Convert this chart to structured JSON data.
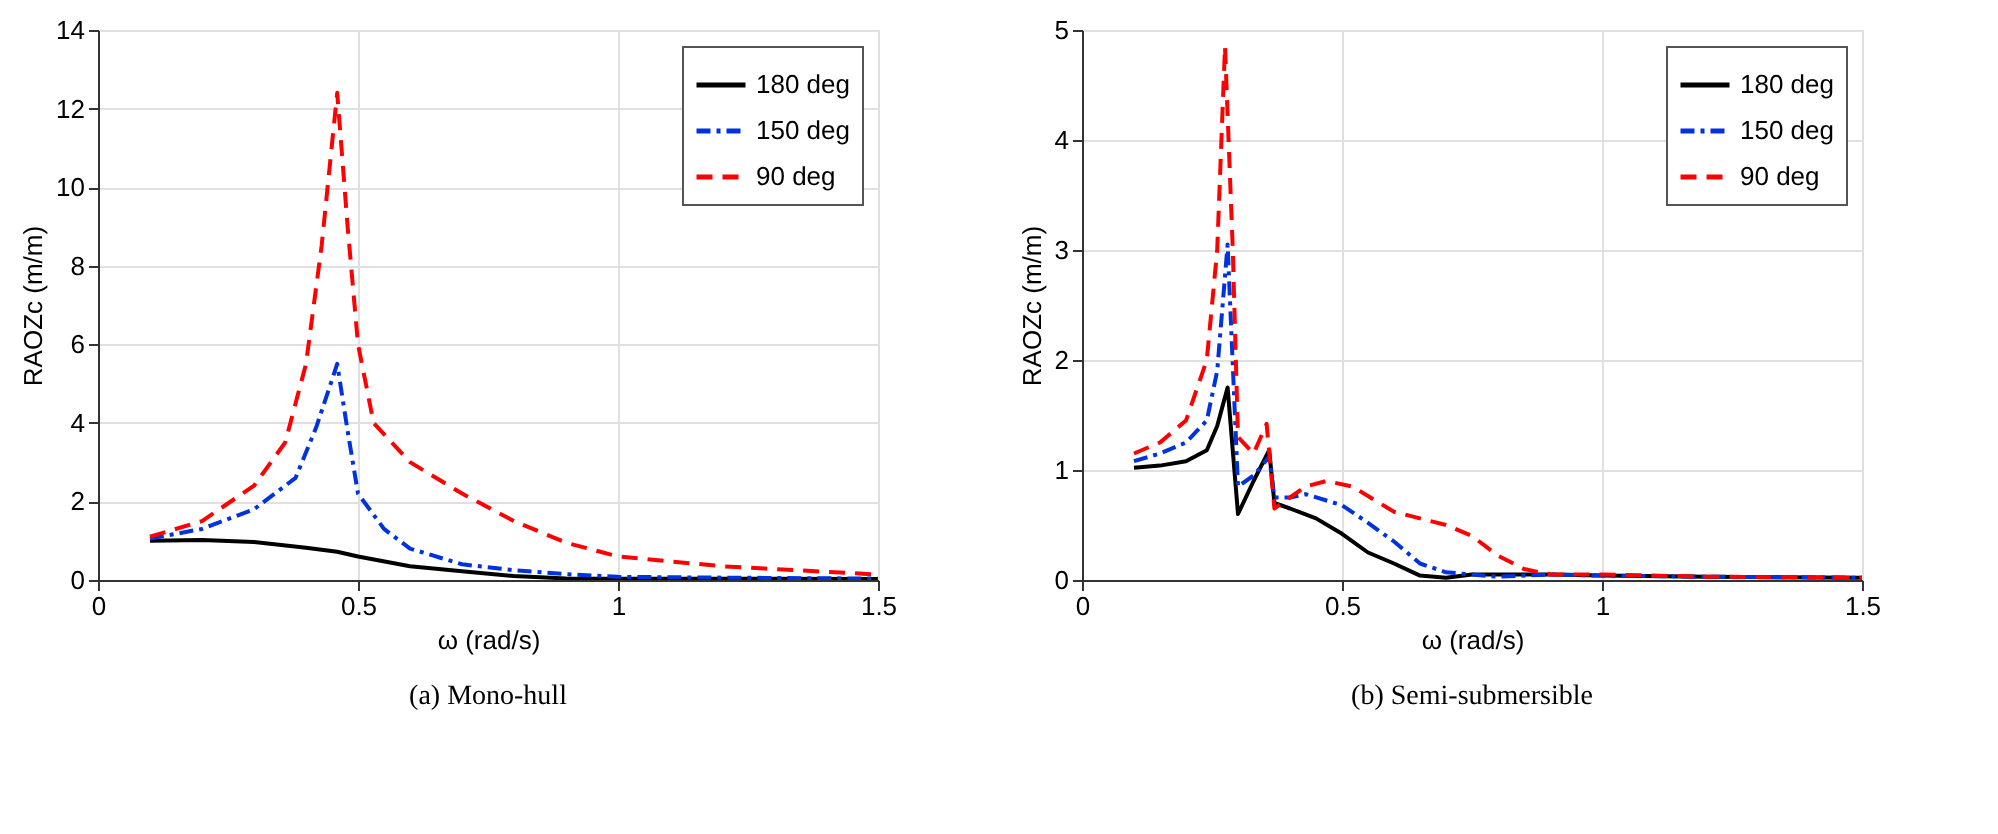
{
  "chart_data": [
    {
      "type": "line",
      "title": "(a) Mono-hull",
      "xlabel": "ω (rad/s)",
      "ylabel": "RAOZc (m/m)",
      "xlim": [
        0,
        1.5
      ],
      "xticks": [
        0,
        0.5,
        1,
        1.5
      ],
      "ylim": [
        0,
        14
      ],
      "yticks": [
        0,
        2,
        4,
        6,
        8,
        10,
        12,
        14
      ],
      "grid": true,
      "legend": "top right",
      "series": [
        {
          "name": "180 deg",
          "color": "#000000",
          "line_style": "solid",
          "x": [
            0.1,
            0.2,
            0.3,
            0.4,
            0.46,
            0.5,
            0.6,
            0.7,
            0.8,
            0.9,
            1.0,
            1.2,
            1.5
          ],
          "values": [
            1.0,
            1.02,
            0.97,
            0.82,
            0.72,
            0.6,
            0.35,
            0.22,
            0.1,
            0.04,
            0.035,
            0.035,
            0.025
          ]
        },
        {
          "name": "150 deg",
          "color": "#0033dd",
          "line_style": "dotted",
          "x": [
            0.1,
            0.2,
            0.3,
            0.38,
            0.42,
            0.46,
            0.48,
            0.5,
            0.55,
            0.6,
            0.7,
            0.8,
            0.9,
            1.0,
            1.2,
            1.5
          ],
          "values": [
            1.05,
            1.3,
            1.8,
            2.6,
            3.9,
            5.5,
            3.8,
            2.2,
            1.3,
            0.8,
            0.4,
            0.25,
            0.15,
            0.08,
            0.06,
            0.035
          ]
        },
        {
          "name": "90 deg",
          "color": "#ff0000",
          "line_style": "dashed",
          "x": [
            0.1,
            0.2,
            0.3,
            0.36,
            0.4,
            0.43,
            0.46,
            0.48,
            0.5,
            0.53,
            0.6,
            0.7,
            0.8,
            0.9,
            1.0,
            1.2,
            1.5
          ],
          "values": [
            1.1,
            1.5,
            2.4,
            3.5,
            5.5,
            8.5,
            12.4,
            9,
            6,
            4,
            3,
            2.2,
            1.5,
            0.95,
            0.6,
            0.35,
            0.14
          ]
        }
      ]
    },
    {
      "type": "line",
      "title": "(b) Semi-submersible",
      "xlabel": "ω (rad/s)",
      "ylabel": "RAOZc (m/m)",
      "xlim": [
        0,
        1.5
      ],
      "xticks": [
        0,
        0.5,
        1,
        1.5
      ],
      "ylim": [
        0,
        5
      ],
      "yticks": [
        0,
        1,
        2,
        3,
        4,
        5
      ],
      "grid": true,
      "legend": "top right",
      "series": [
        {
          "name": "180 deg",
          "color": "#000000",
          "line_style": "solid",
          "x": [
            0.1,
            0.15,
            0.2,
            0.24,
            0.26,
            0.28,
            0.3,
            0.33,
            0.36,
            0.37,
            0.4,
            0.45,
            0.5,
            0.55,
            0.6,
            0.65,
            0.7,
            0.75,
            0.9,
            1.0,
            1.2,
            1.5
          ],
          "values": [
            1.02,
            1.04,
            1.08,
            1.18,
            1.4,
            1.75,
            0.6,
            0.9,
            1.18,
            0.7,
            0.65,
            0.56,
            0.42,
            0.25,
            0.15,
            0.04,
            0.02,
            0.05,
            0.05,
            0.04,
            0.03,
            0.02
          ]
        },
        {
          "name": "150 deg",
          "color": "#0033dd",
          "line_style": "dotted",
          "x": [
            0.1,
            0.15,
            0.2,
            0.24,
            0.26,
            0.28,
            0.3,
            0.33,
            0.36,
            0.37,
            0.4,
            0.43,
            0.5,
            0.55,
            0.6,
            0.65,
            0.7,
            0.8,
            0.9,
            1.0,
            1.2,
            1.5
          ],
          "values": [
            1.08,
            1.15,
            1.25,
            1.45,
            1.9,
            3.05,
            0.85,
            0.95,
            1.12,
            0.75,
            0.75,
            0.78,
            0.68,
            0.52,
            0.35,
            0.15,
            0.07,
            0.03,
            0.05,
            0.04,
            0.03,
            0.02
          ]
        },
        {
          "name": "90 deg",
          "color": "#ff0000",
          "line_style": "dashed",
          "x": [
            0.1,
            0.15,
            0.2,
            0.24,
            0.26,
            0.275,
            0.29,
            0.3,
            0.33,
            0.355,
            0.37,
            0.4,
            0.43,
            0.47,
            0.52,
            0.6,
            0.7,
            0.75,
            0.8,
            0.85,
            0.9,
            1.0,
            1.2,
            1.5
          ],
          "values": [
            1.15,
            1.25,
            1.45,
            2.0,
            3.0,
            4.85,
            3.0,
            1.3,
            1.15,
            1.42,
            0.65,
            0.75,
            0.85,
            0.9,
            0.85,
            0.62,
            0.5,
            0.4,
            0.22,
            0.1,
            0.05,
            0.05,
            0.03,
            0.02
          ]
        }
      ]
    }
  ]
}
